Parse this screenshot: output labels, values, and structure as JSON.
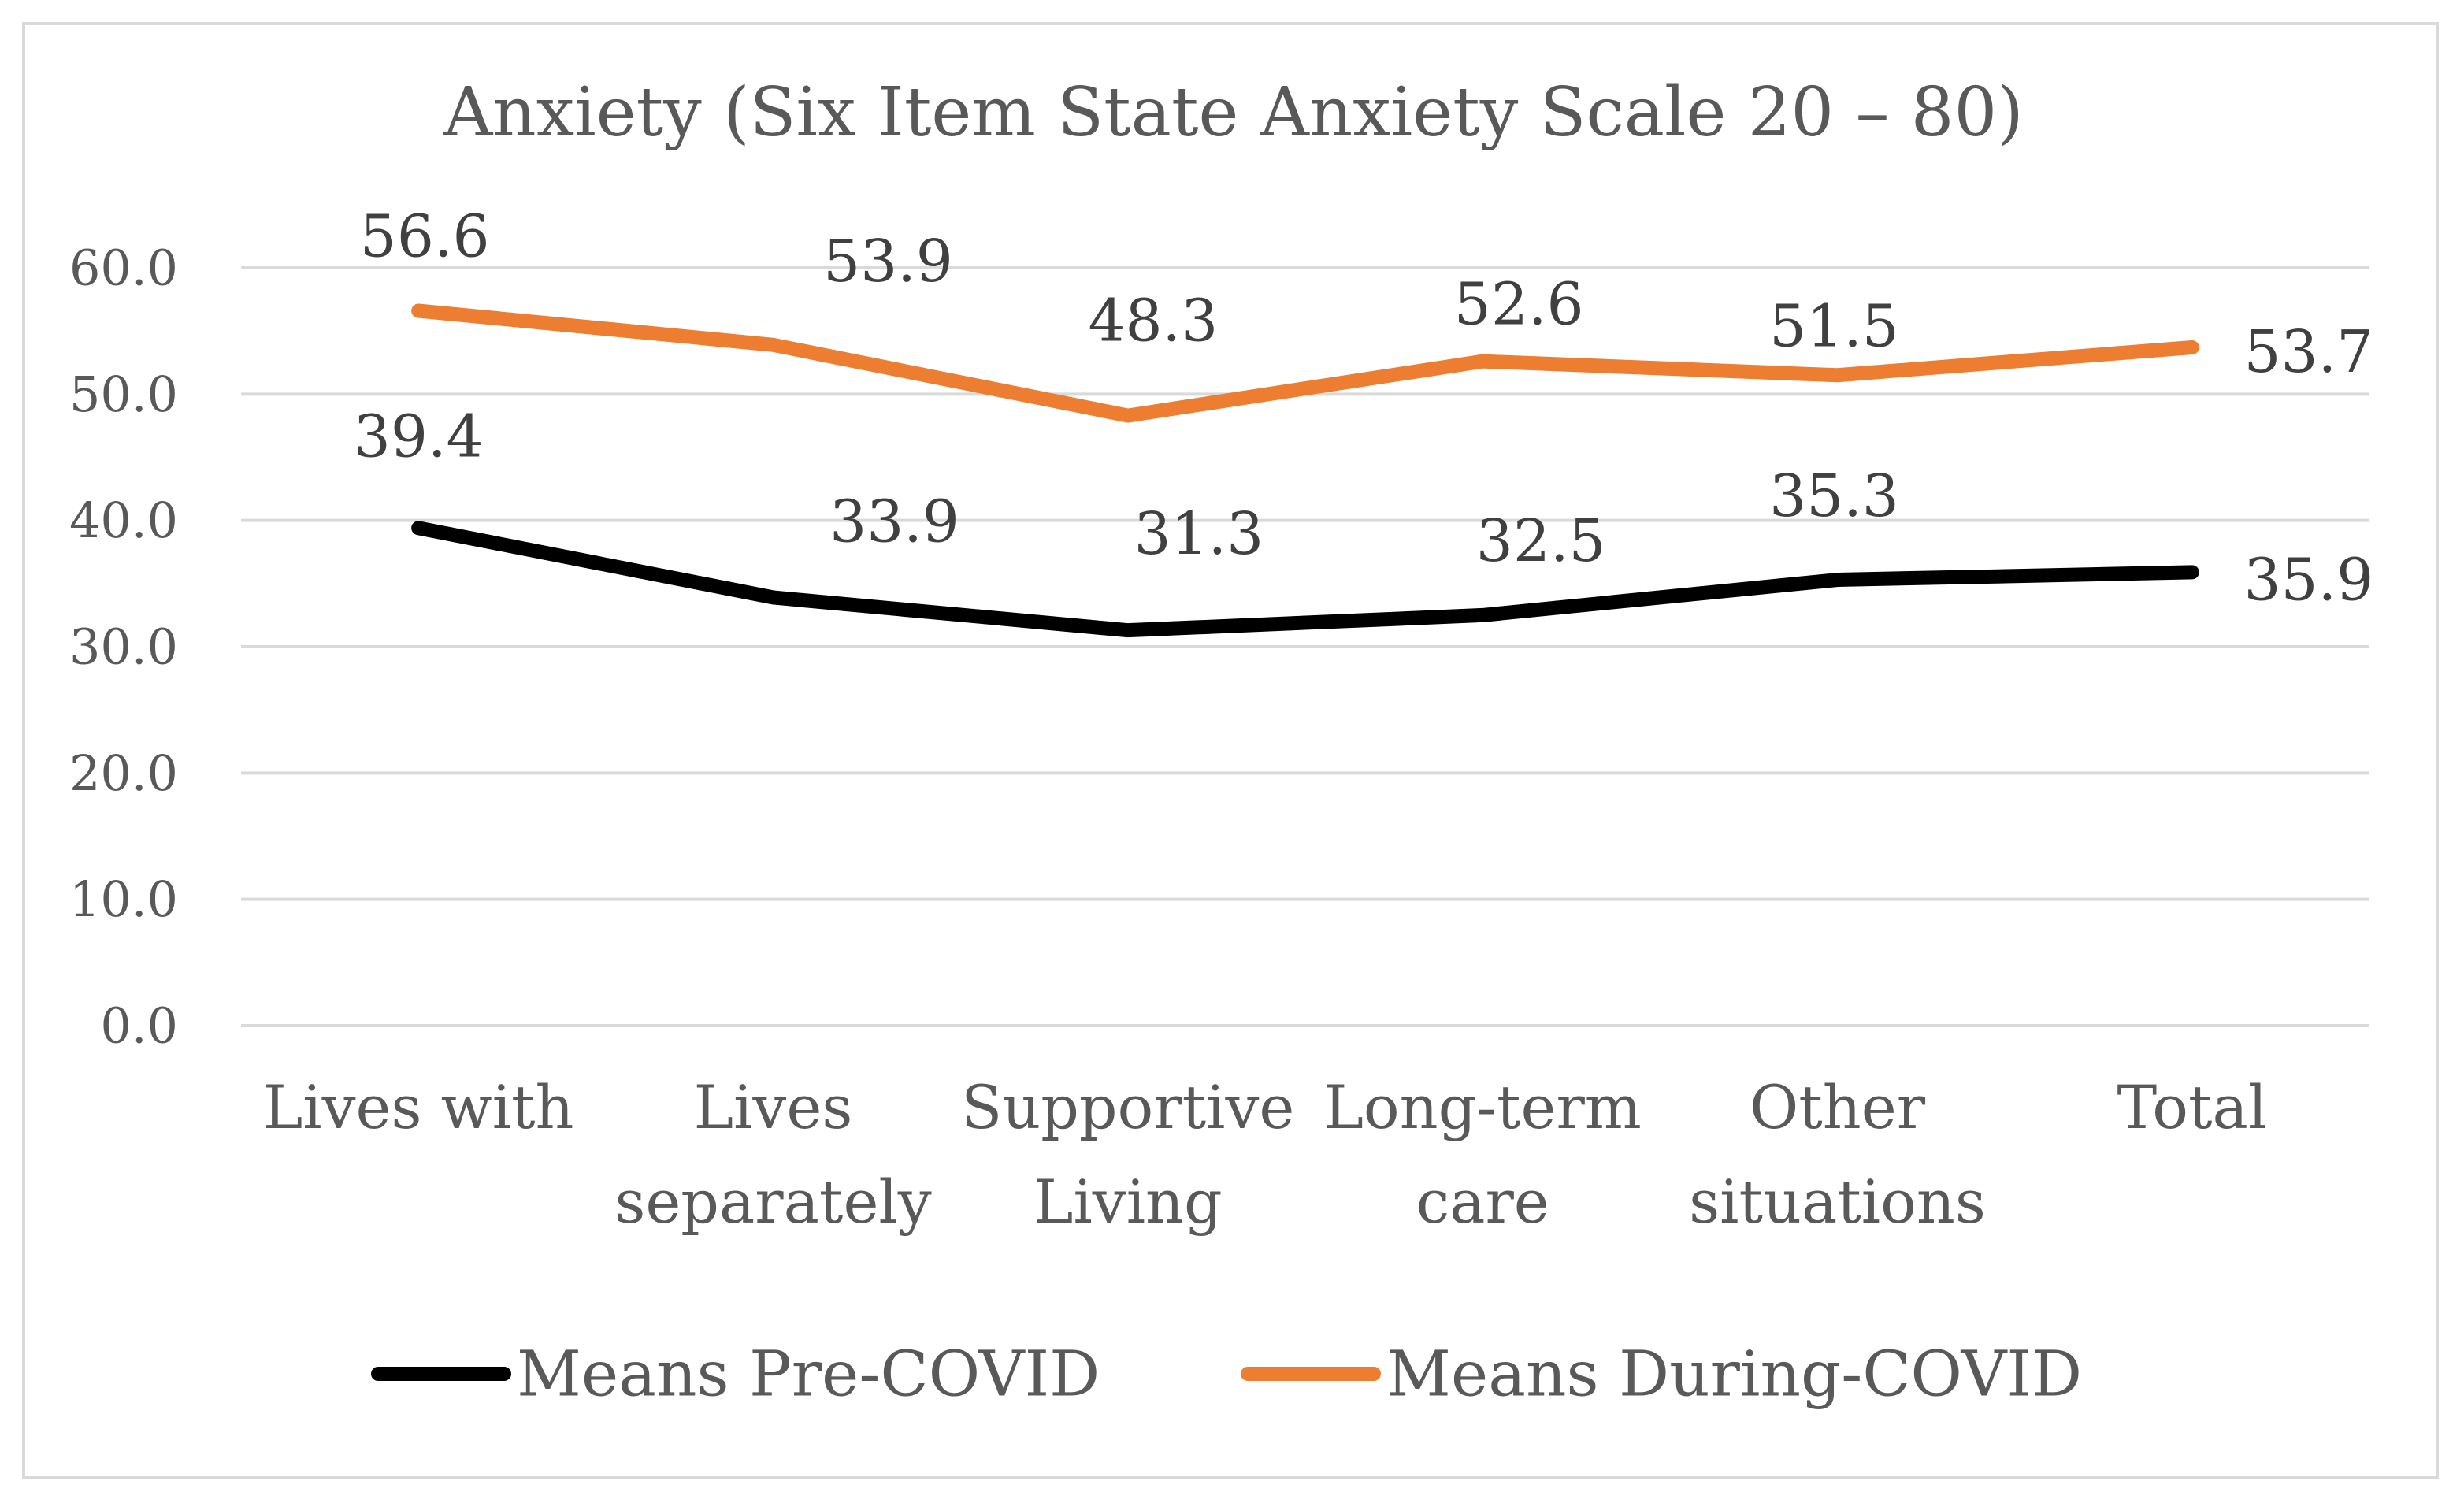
{
  "chart_data": {
    "type": "line",
    "title": "Anxiety (Six Item State Anxiety Scale 20 – 80)",
    "xlabel": "",
    "ylabel": "",
    "categories": [
      [
        "Lives with"
      ],
      [
        "Lives",
        "separately"
      ],
      [
        "Supportive",
        "Living"
      ],
      [
        "Long-term",
        "care"
      ],
      [
        "Other",
        "situations"
      ],
      [
        "Total"
      ]
    ],
    "ylim": [
      0,
      60
    ],
    "yticks": [
      "0.0",
      "10.0",
      "20.0",
      "30.0",
      "40.0",
      "50.0",
      "60.0"
    ],
    "grid": true,
    "legend_position": "bottom",
    "series": [
      {
        "name": "Means Pre-COVID",
        "color": "#000000",
        "values": [
          39.4,
          33.9,
          31.3,
          32.5,
          35.3,
          35.9
        ],
        "labels": [
          "39.4",
          "33.9",
          "31.3",
          "32.5",
          "35.3",
          "35.9"
        ]
      },
      {
        "name": "Means During-COVID",
        "color": "#ED7D31",
        "values": [
          56.6,
          53.9,
          48.3,
          52.6,
          51.5,
          53.7
        ],
        "labels": [
          "56.6",
          "53.9",
          "48.3",
          "52.6",
          "51.5",
          "53.7"
        ]
      }
    ]
  }
}
